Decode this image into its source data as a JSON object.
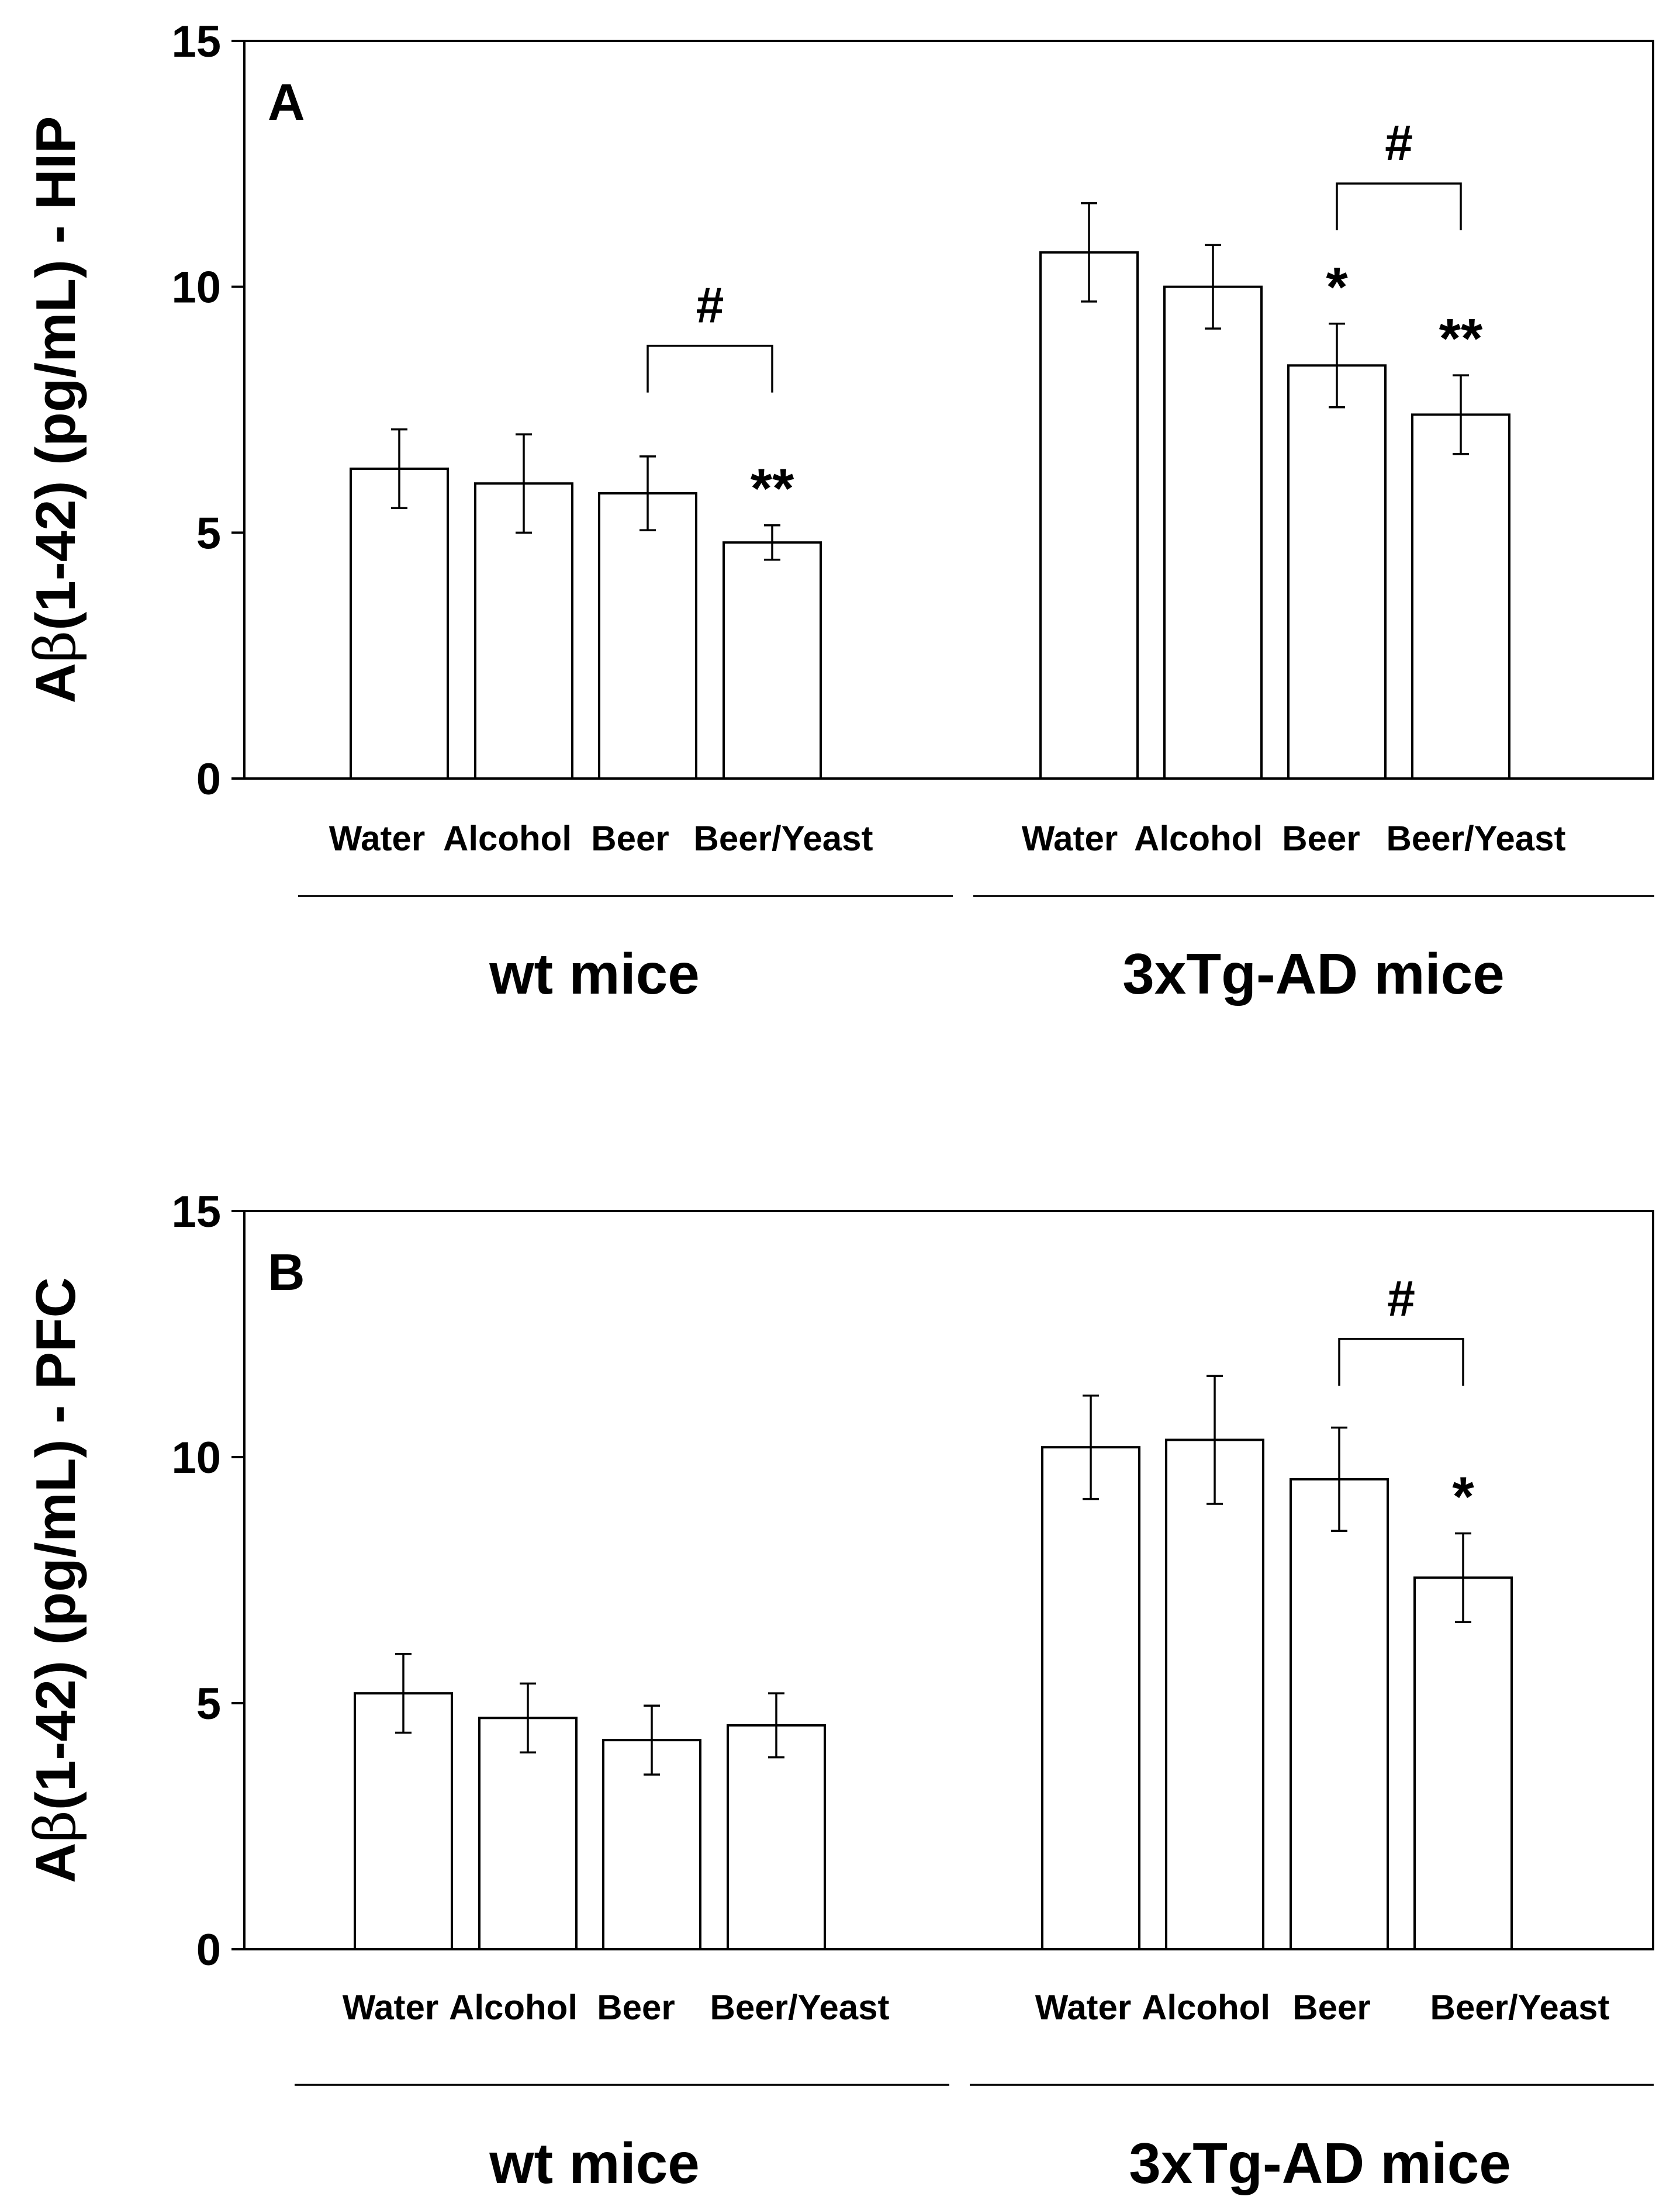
{
  "chart_data": [
    {
      "type": "bar",
      "panel_label": "A",
      "ylabel_prefix": "A",
      "ylabel_beta": "β",
      "ylabel_suffix": "(1-42) (pg/mL) - HIP",
      "ylim": [
        0,
        15
      ],
      "yticks": [
        "0",
        "5",
        "10",
        "15"
      ],
      "categories": [
        "Water",
        "Alcohol",
        "Beer",
        "Beer/Yeast"
      ],
      "groups": [
        {
          "name": "wt mice",
          "values": [
            6.3,
            6.0,
            5.8,
            4.8
          ],
          "errors": [
            0.8,
            1.0,
            0.75,
            0.35
          ],
          "significance": [
            "",
            "",
            "",
            "**"
          ],
          "bracket": {
            "from": 2,
            "to": 3,
            "label": "#",
            "at": 8.8
          }
        },
        {
          "name": "3xTg-AD mice",
          "values": [
            10.7,
            10.0,
            8.4,
            7.4
          ],
          "errors": [
            1.0,
            0.85,
            0.85,
            0.8
          ],
          "significance": [
            "",
            "",
            "*",
            "**"
          ],
          "bracket": {
            "from": 2,
            "to": 3,
            "label": "#",
            "at": 12.1
          }
        }
      ]
    },
    {
      "type": "bar",
      "panel_label": "B",
      "ylabel_prefix": "A",
      "ylabel_beta": "β",
      "ylabel_suffix": "(1-42) (pg/mL) - PFC",
      "ylim": [
        0,
        15
      ],
      "yticks": [
        "0",
        "5",
        "10",
        "15"
      ],
      "categories": [
        "Water",
        "Alcohol",
        "Beer",
        "Beer/Yeast"
      ],
      "groups": [
        {
          "name": "wt mice",
          "values": [
            5.2,
            4.7,
            4.25,
            4.55
          ],
          "errors": [
            0.8,
            0.7,
            0.7,
            0.65
          ],
          "significance": [
            "",
            "",
            "",
            ""
          ],
          "bracket": null
        },
        {
          "name": "3xTg-AD mice",
          "values": [
            10.2,
            10.35,
            9.55,
            7.55
          ],
          "errors": [
            1.05,
            1.3,
            1.05,
            0.9
          ],
          "significance": [
            "",
            "",
            "",
            "*"
          ],
          "bracket": {
            "from": 2,
            "to": 3,
            "label": "#",
            "at": 12.4
          }
        }
      ]
    }
  ]
}
